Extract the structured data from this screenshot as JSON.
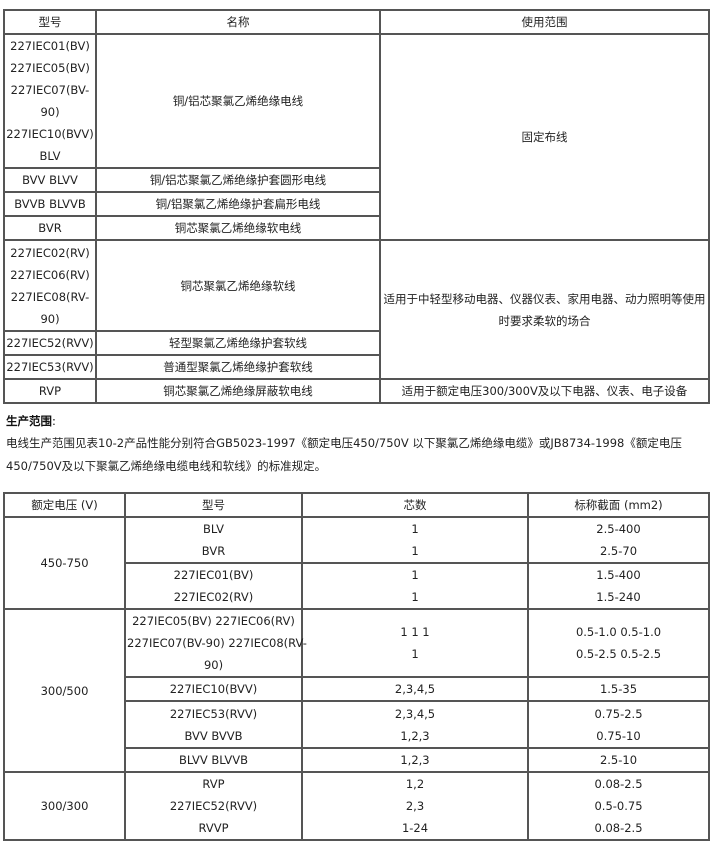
{
  "table1": {
    "headers": [
      "型号",
      "名称",
      "使用范围"
    ],
    "rows": [
      {
        "model": [
          "227IEC01(BV)",
          "227IEC05(BV)",
          "227IEC07(BV-",
          "90)",
          "227IEC10(BVV)",
          "BLV"
        ],
        "name": "铜/铝芯聚氯乙烯绝缘电线",
        "usage": "固定布线"
      },
      {
        "model": [
          "BVV BLVV"
        ],
        "name": "铜/铝芯聚氯乙烯绝缘护套圆形电线"
      },
      {
        "model": [
          "BVVB BLVVB"
        ],
        "name": "铜/铝聚氯乙烯绝缘护套扁形电线"
      },
      {
        "model": [
          "BVR"
        ],
        "name": "铜芯聚氯乙烯绝缘软电线"
      },
      {
        "model": [
          "227IEC02(RV)",
          "227IEC06(RV)",
          "227IEC08(RV-",
          "90)"
        ],
        "name": "铜芯聚氯乙烯绝缘软线",
        "usage": "适用于中轻型移动电器、仪器仪表、家用电器、动力照明等使用时要求柔软的场合"
      },
      {
        "model": [
          "227IEC52(RVV)"
        ],
        "name": "轻型聚氯乙烯绝缘护套软线"
      },
      {
        "model": [
          "227IEC53(RVV)"
        ],
        "name": "普通型聚氯乙烯绝缘护套软线"
      },
      {
        "model": [
          "RVP"
        ],
        "name": "铜芯聚氯乙烯绝缘屏蔽软电线",
        "usage": "适用于额定电压300/300V及以下电器、仪表、电子设备"
      }
    ]
  },
  "production": {
    "title": "生产范围",
    "colon": ":",
    "text": "电线生产范围见表10-2产品性能分别符合GB5023-1997《额定电压450/750V 以下聚氯乙烯绝缘电缆》或JB8734-1998《额定电压450/750V及以下聚氯乙烯绝缘电缆电线和软线》的标准规定。"
  },
  "table2": {
    "headers": [
      "额定电压 (V)",
      "型号",
      "芯数",
      "标称截面 (mm2)"
    ],
    "groups": [
      {
        "voltage": "450-750",
        "rows": [
          {
            "model": [
              "BLV",
              "BVR"
            ],
            "cores": [
              "1",
              "1"
            ],
            "section": [
              "2.5-400",
              "2.5-70"
            ]
          },
          {
            "model": [
              "227IEC01(BV)",
              "227IEC02(RV)"
            ],
            "cores": [
              "1",
              "1"
            ],
            "section": [
              "1.5-400",
              "1.5-240"
            ]
          }
        ]
      },
      {
        "voltage": "300/500",
        "rows": [
          {
            "model": [
              "227IEC05(BV) 227IEC06(RV)",
              "227IEC07(BV-90) 227IEC08(RV-",
              "90)"
            ],
            "cores": [
              "1 1 1",
              "1"
            ],
            "section": [
              "0.5-1.0 0.5-1.0",
              "0.5-2.5 0.5-2.5"
            ]
          },
          {
            "model": [
              "227IEC10(BVV)"
            ],
            "cores": [
              "2,3,4,5"
            ],
            "section": [
              "1.5-35"
            ]
          },
          {
            "model": [
              "227IEC53(RVV)",
              "BVV BVVB"
            ],
            "cores": [
              "2,3,4,5",
              "1,2,3"
            ],
            "section": [
              "0.75-2.5",
              "0.75-10"
            ]
          },
          {
            "model": [
              "BLVV BLVVB"
            ],
            "cores": [
              "1,2,3"
            ],
            "section": [
              "2.5-10"
            ]
          }
        ]
      },
      {
        "voltage": "300/300",
        "rows": [
          {
            "model": [
              "RVP",
              "227IEC52(RVV)",
              "RVVP"
            ],
            "cores": [
              "1,2",
              "2,3",
              "1-24"
            ],
            "section": [
              "0.08-2.5",
              "0.5-0.75",
              "0.08-2.5"
            ]
          }
        ]
      }
    ]
  }
}
